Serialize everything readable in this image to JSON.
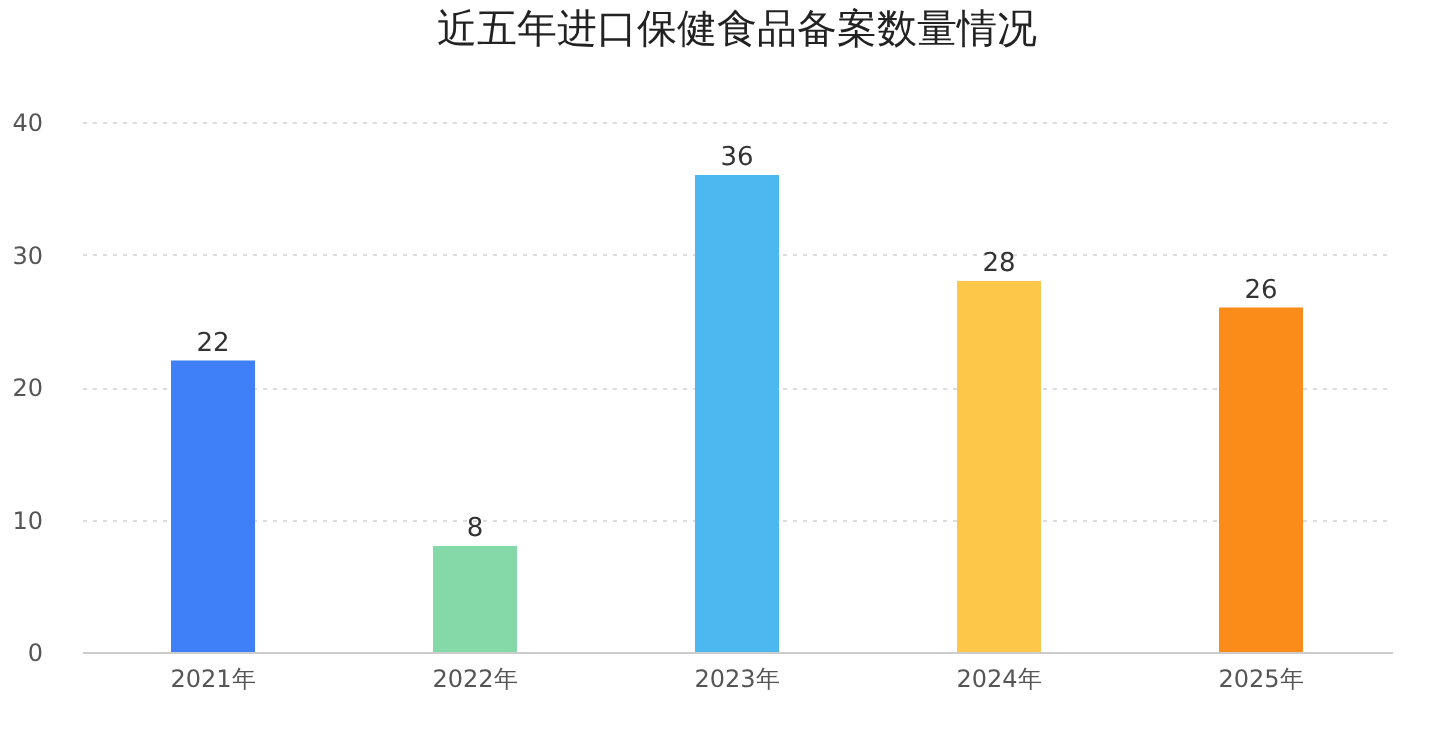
{
  "chart_data": {
    "type": "bar",
    "title": "近五年进口保健食品备案数量情况",
    "categories": [
      "2021年",
      "2022年",
      "2023年",
      "2024年",
      "2025年"
    ],
    "values": [
      22,
      8,
      36,
      28,
      26
    ],
    "colors": [
      "#3f7ff7",
      "#85d9a8",
      "#4cb8f0",
      "#fdc84a",
      "#fb8c1a"
    ],
    "ylim": [
      0,
      40
    ],
    "yticks": [
      0,
      10,
      20,
      30,
      40
    ],
    "grid": "y",
    "data_labels": true
  }
}
